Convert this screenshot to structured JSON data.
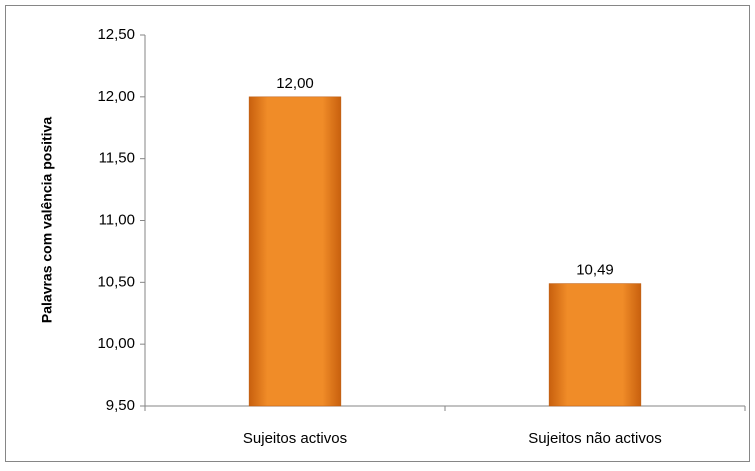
{
  "chart_data": {
    "type": "bar",
    "y_label": "Palavras com valência positiva",
    "categories": [
      "Sujeitos activos",
      "Sujeitos não activos"
    ],
    "values": [
      12.0,
      10.49
    ],
    "value_labels": [
      "12,00",
      "10,49"
    ],
    "color": "#f08c28",
    "ylim": [
      9.5,
      12.5
    ],
    "yticks": [
      {
        "value": 9.5,
        "label": "9,50"
      },
      {
        "value": 10,
        "label": "10,00"
      },
      {
        "value": 10.5,
        "label": "10,50"
      },
      {
        "value": 11,
        "label": "11,00"
      },
      {
        "value": 11.5,
        "label": "11,50"
      },
      {
        "value": 12,
        "label": "12,00"
      },
      {
        "value": 12.5,
        "label": "12,50"
      }
    ],
    "grid": false
  }
}
